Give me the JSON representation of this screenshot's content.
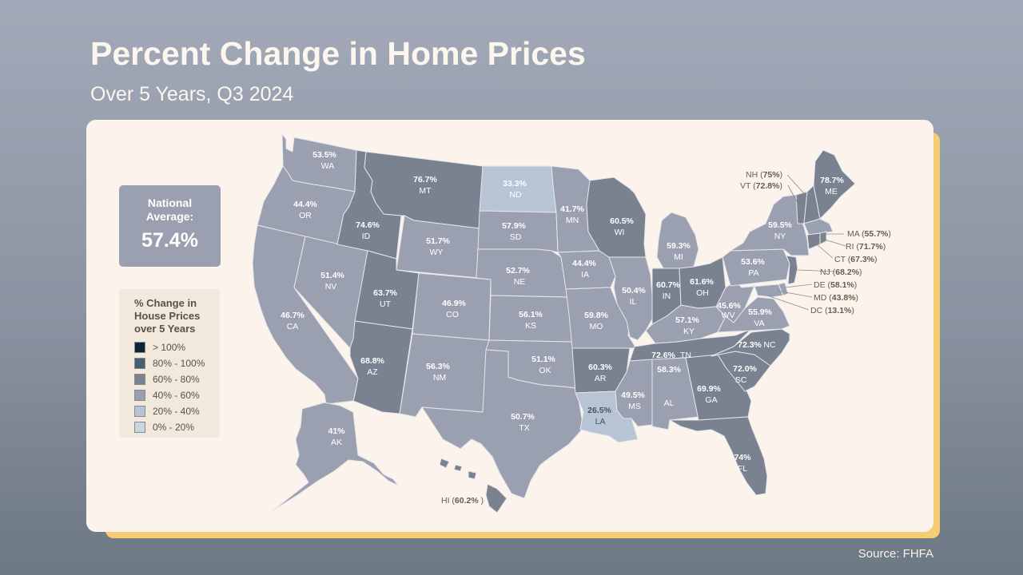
{
  "title": "Percent Change in Home Prices",
  "subtitle": "Over 5 Years, Q3 2024",
  "national_average": {
    "label": "National\nAverage:",
    "value": "57.4%"
  },
  "legend": {
    "title": "% Change in\nHouse Prices\nover 5 Years",
    "items": [
      {
        "label": "> 100%",
        "color": "#0f2336"
      },
      {
        "label": "80% - 100%",
        "color": "#485f72"
      },
      {
        "label": "60% - 80%",
        "color": "#7a818f"
      },
      {
        "label": "40% - 60%",
        "color": "#9ba0b0"
      },
      {
        "label": "20% - 40%",
        "color": "#b6c4d6"
      },
      {
        "label": "0% - 20%",
        "color": "#c9d5e2"
      }
    ]
  },
  "states": [
    {
      "abbr": "WA",
      "value": "53.5%"
    },
    {
      "abbr": "OR",
      "value": "44.4%"
    },
    {
      "abbr": "CA",
      "value": "46.7%"
    },
    {
      "abbr": "NV",
      "value": "51.4%"
    },
    {
      "abbr": "ID",
      "value": "74.6%"
    },
    {
      "abbr": "MT",
      "value": "76.7%"
    },
    {
      "abbr": "WY",
      "value": "51.7%"
    },
    {
      "abbr": "UT",
      "value": "63.7%"
    },
    {
      "abbr": "AZ",
      "value": "68.8%"
    },
    {
      "abbr": "CO",
      "value": "46.9%"
    },
    {
      "abbr": "NM",
      "value": "56.3%"
    },
    {
      "abbr": "ND",
      "value": "33.3%"
    },
    {
      "abbr": "SD",
      "value": "57.9%"
    },
    {
      "abbr": "NE",
      "value": "52.7%"
    },
    {
      "abbr": "KS",
      "value": "56.1%"
    },
    {
      "abbr": "OK",
      "value": "51.1%"
    },
    {
      "abbr": "TX",
      "value": "50.7%"
    },
    {
      "abbr": "MN",
      "value": "41.7%"
    },
    {
      "abbr": "IA",
      "value": "44.4%"
    },
    {
      "abbr": "MO",
      "value": "59.8%"
    },
    {
      "abbr": "AR",
      "value": "60.3%"
    },
    {
      "abbr": "LA",
      "value": "26.5%"
    },
    {
      "abbr": "WI",
      "value": "60.5%"
    },
    {
      "abbr": "IL",
      "value": "50.4%"
    },
    {
      "abbr": "MI",
      "value": "59.3%"
    },
    {
      "abbr": "IN",
      "value": "60.7%"
    },
    {
      "abbr": "OH",
      "value": "61.6%"
    },
    {
      "abbr": "KY",
      "value": "57.1%"
    },
    {
      "abbr": "TN",
      "value": "72.6%"
    },
    {
      "abbr": "MS",
      "value": "49.5%"
    },
    {
      "abbr": "AL",
      "value": "58.3%"
    },
    {
      "abbr": "GA",
      "value": "69.9%"
    },
    {
      "abbr": "FL",
      "value": "74%"
    },
    {
      "abbr": "SC",
      "value": "72.0%"
    },
    {
      "abbr": "NC",
      "value": "72.3%"
    },
    {
      "abbr": "VA",
      "value": "55.9%"
    },
    {
      "abbr": "WV",
      "value": "45.6%"
    },
    {
      "abbr": "PA",
      "value": "53.6%"
    },
    {
      "abbr": "NY",
      "value": "59.5%"
    },
    {
      "abbr": "ME",
      "value": "78.7%"
    },
    {
      "abbr": "AK",
      "value": "41%"
    }
  ],
  "callouts": [
    {
      "abbr": "NH",
      "value": "75%"
    },
    {
      "abbr": "VT",
      "value": "72.8%"
    },
    {
      "abbr": "MA",
      "value": "55.7%"
    },
    {
      "abbr": "RI",
      "value": "71.7%"
    },
    {
      "abbr": "CT",
      "value": "67.3%"
    },
    {
      "abbr": "NJ",
      "value": "68.2%"
    },
    {
      "abbr": "DE",
      "value": "58.1%"
    },
    {
      "abbr": "MD",
      "value": "43.8%"
    },
    {
      "abbr": "DC",
      "value": "13.1%"
    },
    {
      "abbr": "HI",
      "value": "60.2%"
    }
  ],
  "source": "Source: FHFA"
}
